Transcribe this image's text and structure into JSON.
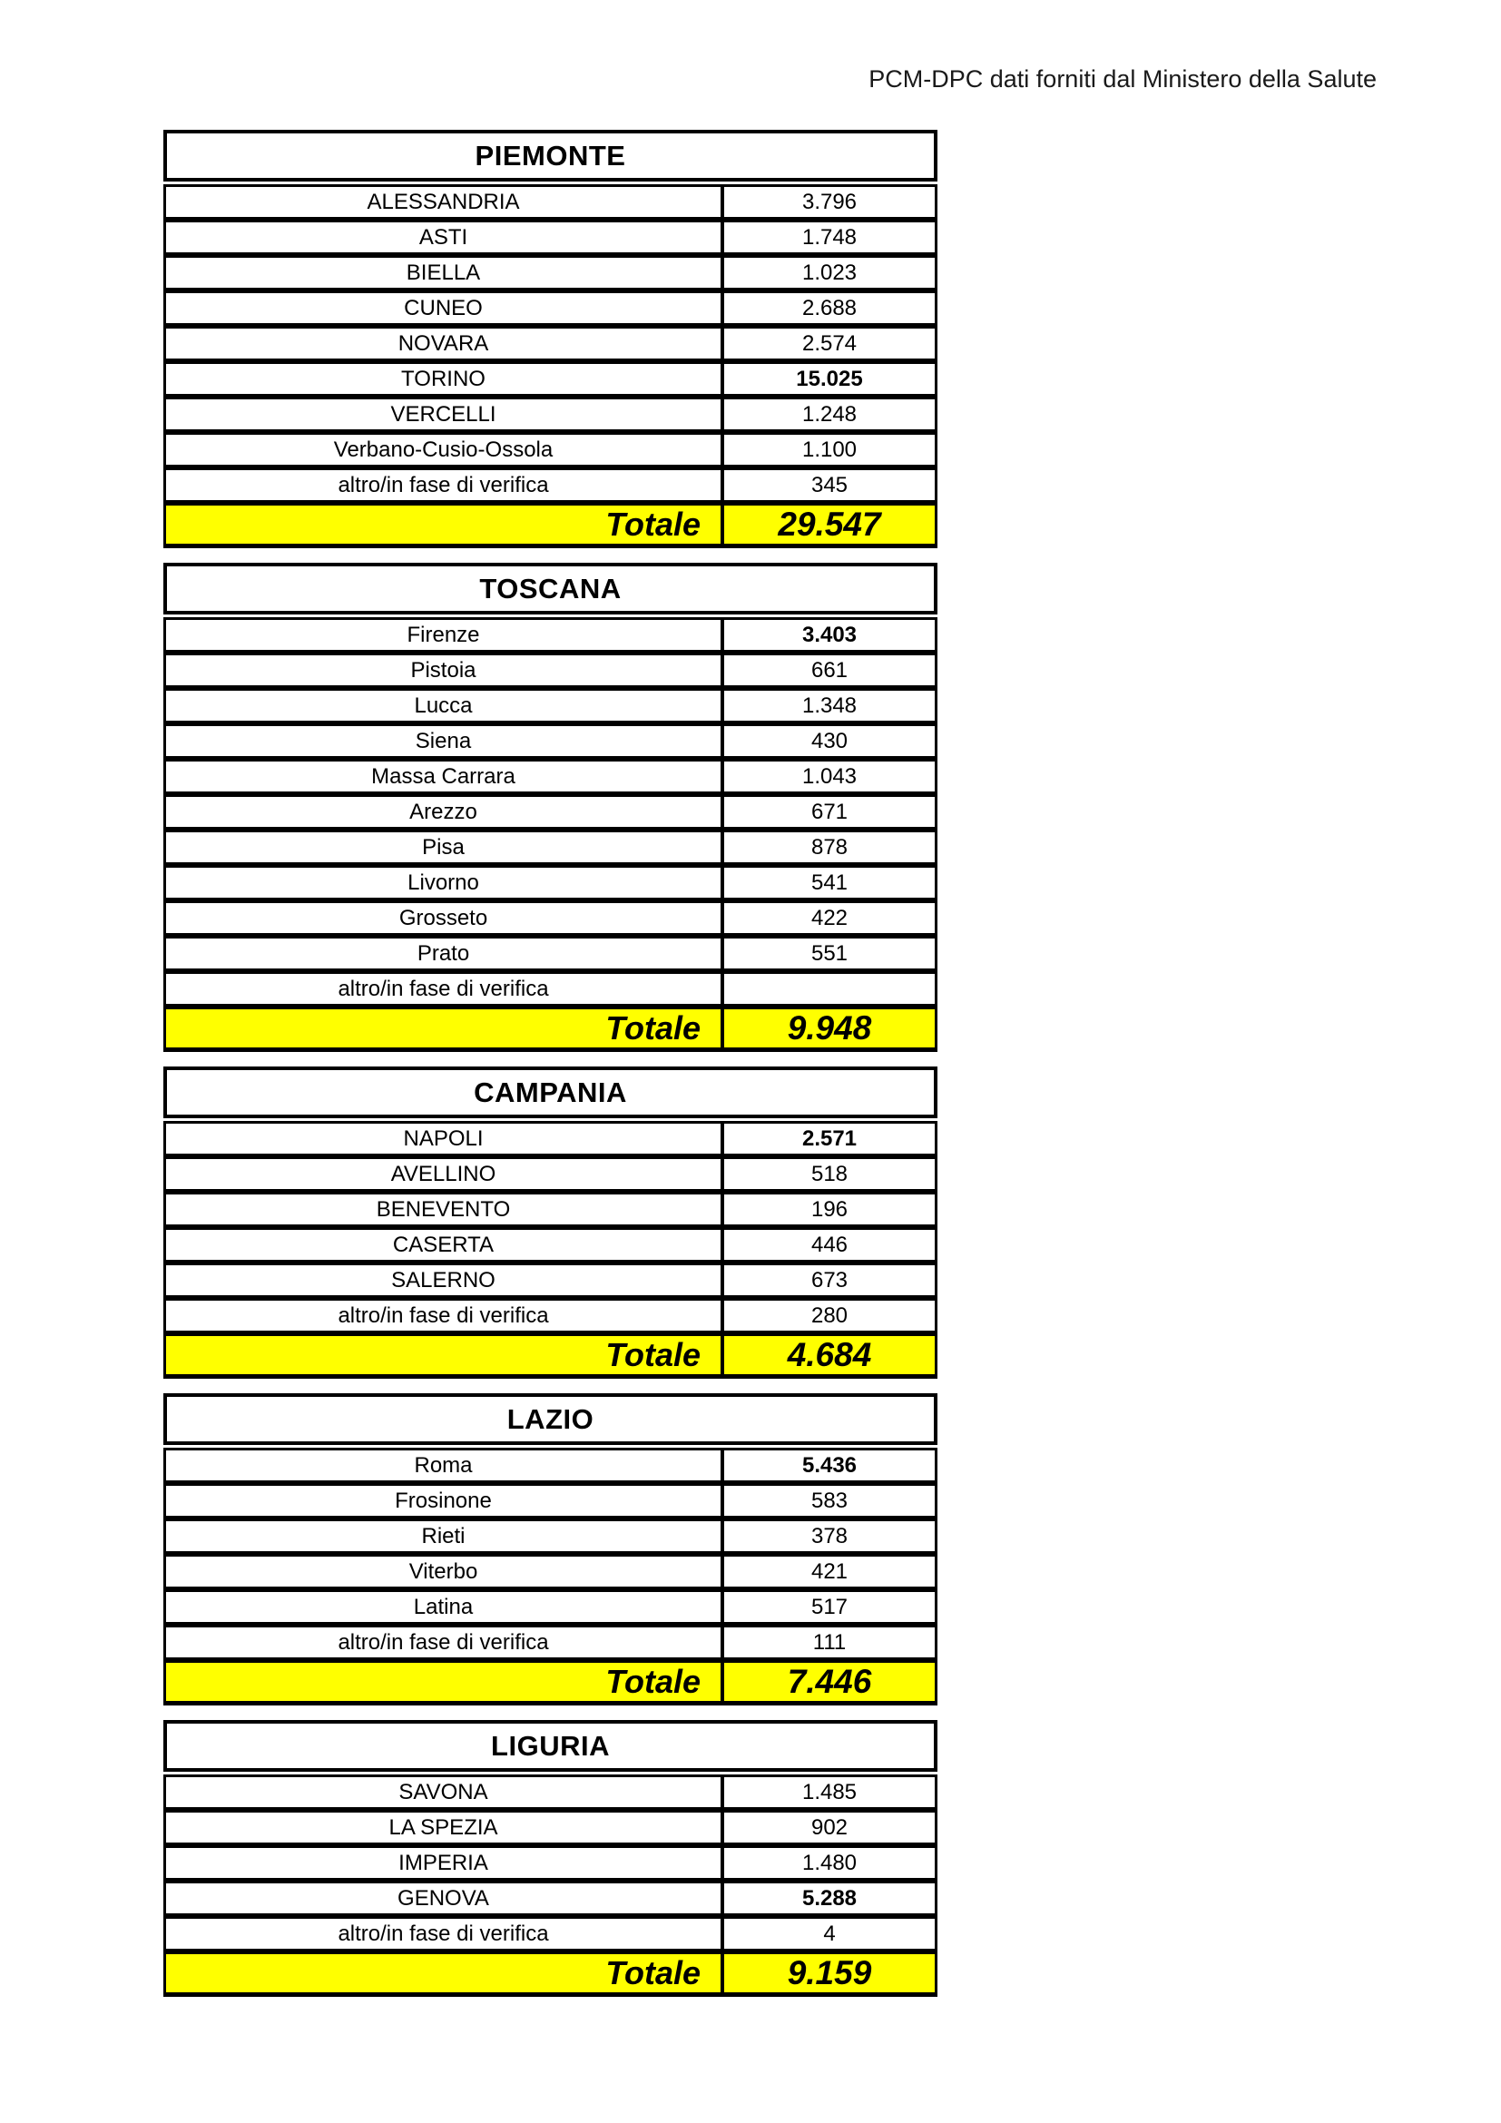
{
  "page": {
    "header_note": "PCM-DPC dati forniti dal Ministero della Salute"
  },
  "labels": {
    "total": "Totale"
  },
  "colors": {
    "total_row_bg": "#ffff00",
    "border": "#000000",
    "text": "#000000"
  },
  "tables": [
    {
      "region": "PIEMONTE",
      "rows": [
        {
          "name": "ALESSANDRIA",
          "value": "3.796",
          "bold": false
        },
        {
          "name": "ASTI",
          "value": "1.748",
          "bold": false
        },
        {
          "name": "BIELLA",
          "value": "1.023",
          "bold": false
        },
        {
          "name": "CUNEO",
          "value": "2.688",
          "bold": false
        },
        {
          "name": "NOVARA",
          "value": "2.574",
          "bold": false
        },
        {
          "name": "TORINO",
          "value": "15.025",
          "bold": true
        },
        {
          "name": "VERCELLI",
          "value": "1.248",
          "bold": false
        },
        {
          "name": "Verbano-Cusio-Ossola",
          "value": "1.100",
          "bold": false
        },
        {
          "name": "altro/in fase di verifica",
          "value": "345",
          "bold": false
        }
      ],
      "total": "29.547"
    },
    {
      "region": "TOSCANA",
      "rows": [
        {
          "name": "Firenze",
          "value": "3.403",
          "bold": true
        },
        {
          "name": "Pistoia",
          "value": "661",
          "bold": false
        },
        {
          "name": "Lucca",
          "value": "1.348",
          "bold": false
        },
        {
          "name": "Siena",
          "value": "430",
          "bold": false
        },
        {
          "name": "Massa Carrara",
          "value": "1.043",
          "bold": false
        },
        {
          "name": "Arezzo",
          "value": "671",
          "bold": false
        },
        {
          "name": "Pisa",
          "value": "878",
          "bold": false
        },
        {
          "name": "Livorno",
          "value": "541",
          "bold": false
        },
        {
          "name": "Grosseto",
          "value": "422",
          "bold": false
        },
        {
          "name": "Prato",
          "value": "551",
          "bold": false
        },
        {
          "name": "altro/in fase di verifica",
          "value": "",
          "bold": false
        }
      ],
      "total": "9.948"
    },
    {
      "region": "CAMPANIA",
      "rows": [
        {
          "name": "NAPOLI",
          "value": "2.571",
          "bold": true
        },
        {
          "name": "AVELLINO",
          "value": "518",
          "bold": false
        },
        {
          "name": "BENEVENTO",
          "value": "196",
          "bold": false
        },
        {
          "name": "CASERTA",
          "value": "446",
          "bold": false
        },
        {
          "name": "SALERNO",
          "value": "673",
          "bold": false
        },
        {
          "name": "altro/in fase di verifica",
          "value": "280",
          "bold": false
        }
      ],
      "total": "4.684"
    },
    {
      "region": "LAZIO",
      "rows": [
        {
          "name": "Roma",
          "value": "5.436",
          "bold": true
        },
        {
          "name": "Frosinone",
          "value": "583",
          "bold": false
        },
        {
          "name": "Rieti",
          "value": "378",
          "bold": false
        },
        {
          "name": "Viterbo",
          "value": "421",
          "bold": false
        },
        {
          "name": "Latina",
          "value": "517",
          "bold": false
        },
        {
          "name": "altro/in fase di verifica",
          "value": "111",
          "bold": false
        }
      ],
      "total": "7.446"
    },
    {
      "region": "LIGURIA",
      "rows": [
        {
          "name": "SAVONA",
          "value": "1.485",
          "bold": false
        },
        {
          "name": "LA SPEZIA",
          "value": "902",
          "bold": false
        },
        {
          "name": "IMPERIA",
          "value": "1.480",
          "bold": false
        },
        {
          "name": "GENOVA",
          "value": "5.288",
          "bold": true
        },
        {
          "name": "altro/in fase di verifica",
          "value": "4",
          "bold": false
        }
      ],
      "total": "9.159"
    }
  ]
}
